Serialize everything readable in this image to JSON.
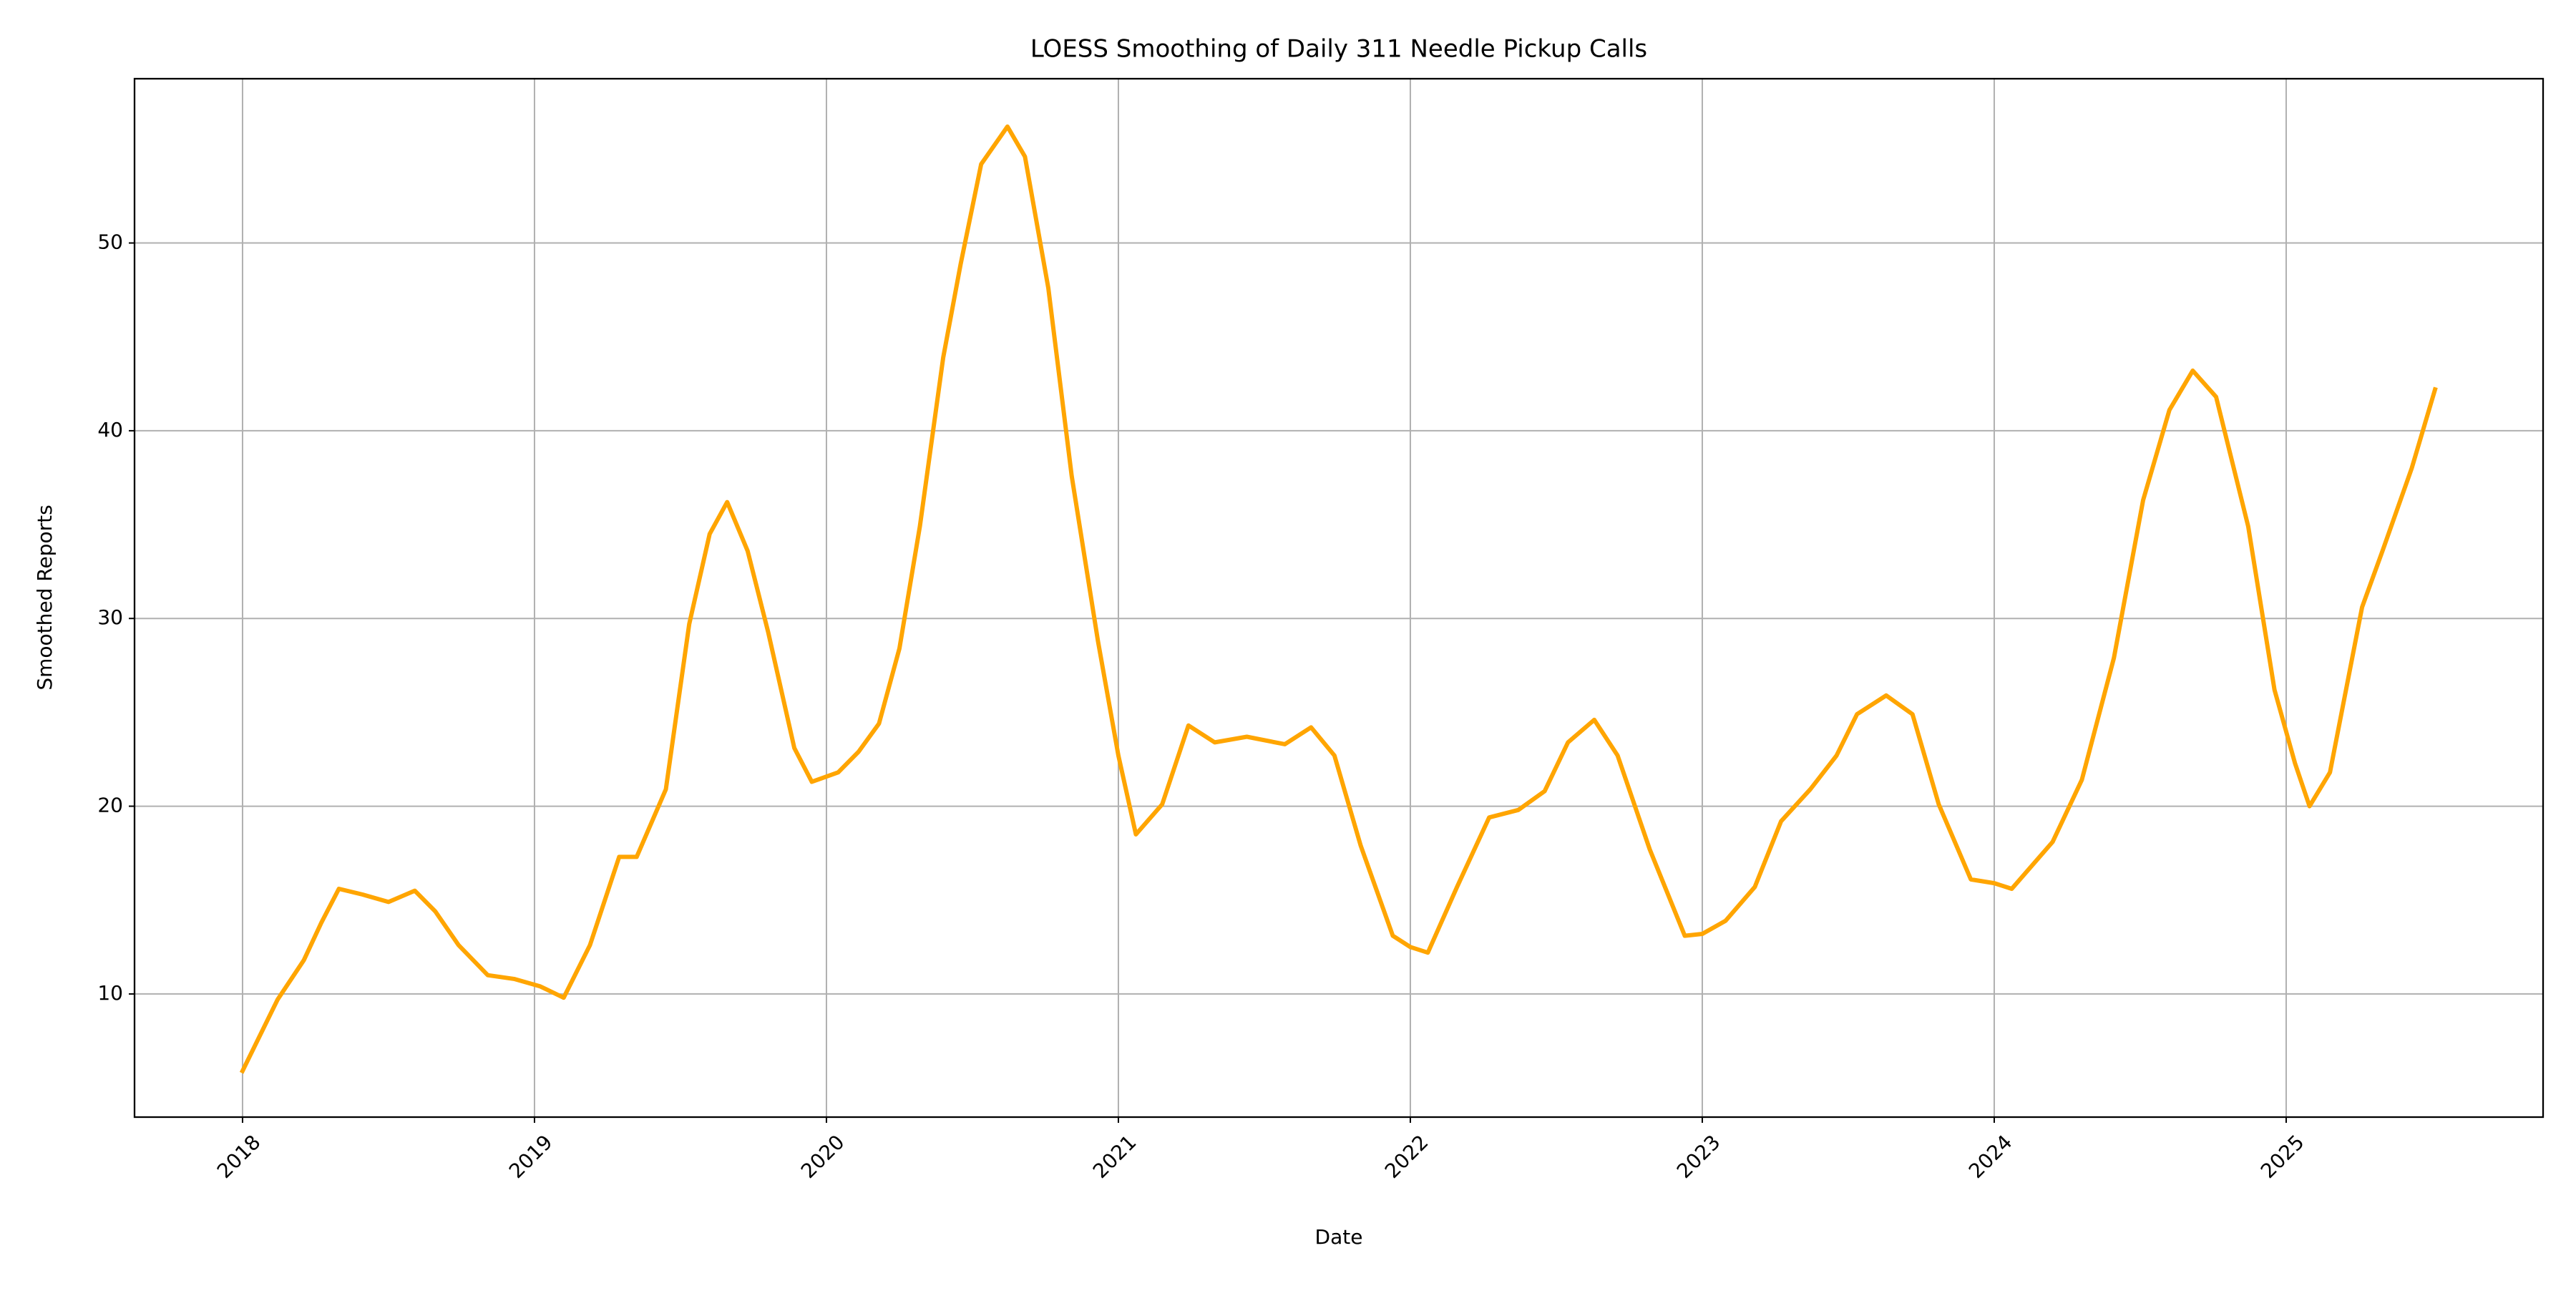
{
  "chart_data": {
    "type": "line",
    "title": "LOESS Smoothing of Daily 311 Needle Pickup Calls",
    "x_label": "Date",
    "y_label": "Smoothed Reports",
    "grid": true,
    "xlim": [
      2017.63,
      2025.88
    ],
    "ylim": [
      3.44,
      58.75
    ],
    "xticks": [
      2018,
      2019,
      2020,
      2021,
      2022,
      2023,
      2024,
      2025
    ],
    "yticks": [
      10,
      20,
      30,
      40,
      50
    ],
    "x": [
      2018.0,
      2018.12,
      2018.21,
      2018.27,
      2018.33,
      2018.41,
      2018.5,
      2018.59,
      2018.66,
      2018.74,
      2018.84,
      2018.93,
      2019.02,
      2019.1,
      2019.19,
      2019.29,
      2019.35,
      2019.45,
      2019.53,
      2019.6,
      2019.66,
      2019.73,
      2019.8,
      2019.89,
      2019.95,
      2020.04,
      2020.11,
      2020.18,
      2020.25,
      2020.32,
      2020.4,
      2020.46,
      2020.53,
      2020.62,
      2020.68,
      2020.76,
      2020.84,
      2020.93,
      2021.0,
      2021.06,
      2021.15,
      2021.24,
      2021.33,
      2021.44,
      2021.57,
      2021.66,
      2021.74,
      2021.83,
      2021.94,
      2022.0,
      2022.06,
      2022.16,
      2022.27,
      2022.37,
      2022.46,
      2022.54,
      2022.63,
      2022.71,
      2022.82,
      2022.94,
      2023.0,
      2023.08,
      2023.18,
      2023.27,
      2023.37,
      2023.46,
      2023.53,
      2023.63,
      2023.72,
      2023.81,
      2023.92,
      2024.0,
      2024.06,
      2024.2,
      2024.3,
      2024.41,
      2024.51,
      2024.6,
      2024.68,
      2024.76,
      2024.87,
      2024.96,
      2025.03,
      2025.08,
      2025.15,
      2025.26,
      2025.33,
      2025.43,
      2025.51
    ],
    "series": [
      {
        "name": "Smoothed Reports",
        "color": "#ffa500",
        "values": [
          5.9,
          9.7,
          11.8,
          13.8,
          15.6,
          15.3,
          14.9,
          15.5,
          14.4,
          12.6,
          11.0,
          10.8,
          10.4,
          9.8,
          12.6,
          17.3,
          17.3,
          20.9,
          29.7,
          34.5,
          36.2,
          33.6,
          29.3,
          23.1,
          21.3,
          21.8,
          22.9,
          24.4,
          28.4,
          34.9,
          43.9,
          48.9,
          54.2,
          56.2,
          54.6,
          47.6,
          37.6,
          28.8,
          22.7,
          18.5,
          20.1,
          24.3,
          23.4,
          23.7,
          23.3,
          24.2,
          22.7,
          17.9,
          13.1,
          12.5,
          12.2,
          15.7,
          19.4,
          19.8,
          20.8,
          23.4,
          24.6,
          22.7,
          17.7,
          13.1,
          13.2,
          13.9,
          15.7,
          19.2,
          20.9,
          22.7,
          24.9,
          25.9,
          24.9,
          20.1,
          16.1,
          15.9,
          15.6,
          18.1,
          21.4,
          27.9,
          36.3,
          41.1,
          43.2,
          41.8,
          34.9,
          26.2,
          22.3,
          20.0,
          21.8,
          30.6,
          33.6,
          38.0,
          42.2
        ]
      }
    ]
  }
}
